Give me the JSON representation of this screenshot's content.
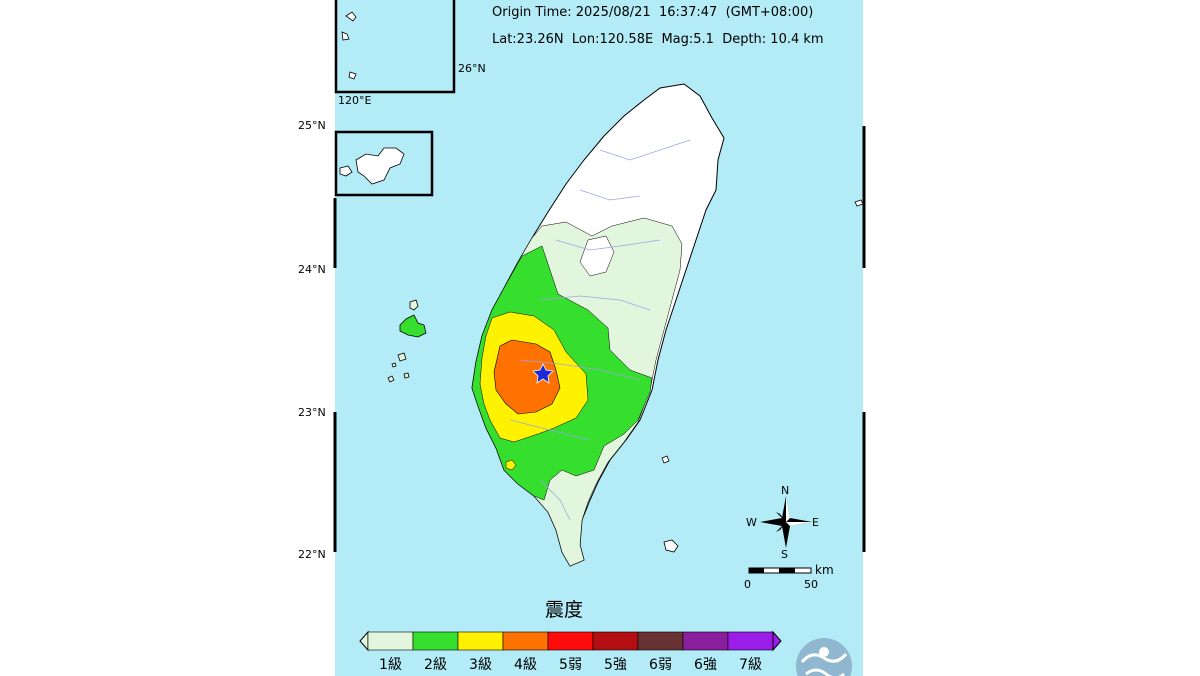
{
  "header": {
    "origin_time": "Origin Time: 2025/08/21  16:37:47  (GMT+08:00)",
    "location_line": "Lat:23.26N  Lon:120.58E  Mag:5.1  Depth: 10.4 km"
  },
  "map": {
    "colors": {
      "sea": "#b3ebf7",
      "land_white": "#ffffff",
      "level1": "#e1f6dc",
      "level2": "#36de2e",
      "level3": "#fff200",
      "level4": "#ff7100",
      "epicenter": "#1a2bd6",
      "river": "#9aa5e6"
    },
    "lat_labels": [
      "25°N",
      "24°N",
      "23°N",
      "22°N"
    ],
    "inset_labels": {
      "lat": "26°N",
      "lon": "120°E"
    },
    "compass": {
      "n": "N",
      "s": "S",
      "e": "E",
      "w": "W"
    },
    "scale": {
      "unit": "km",
      "zero": "0",
      "max": "50"
    }
  },
  "legend": {
    "title": "震度",
    "levels": [
      {
        "label": "1級",
        "color": "#e1f6dc"
      },
      {
        "label": "2級",
        "color": "#36de2e"
      },
      {
        "label": "3級",
        "color": "#fff200"
      },
      {
        "label": "4級",
        "color": "#ff7100"
      },
      {
        "label": "5弱",
        "color": "#ff0b0b"
      },
      {
        "label": "5強",
        "color": "#b30f13"
      },
      {
        "label": "6弱",
        "color": "#6a3333"
      },
      {
        "label": "6強",
        "color": "#8a1f9d"
      },
      {
        "label": "7級",
        "color": "#9a1ee8"
      }
    ]
  }
}
